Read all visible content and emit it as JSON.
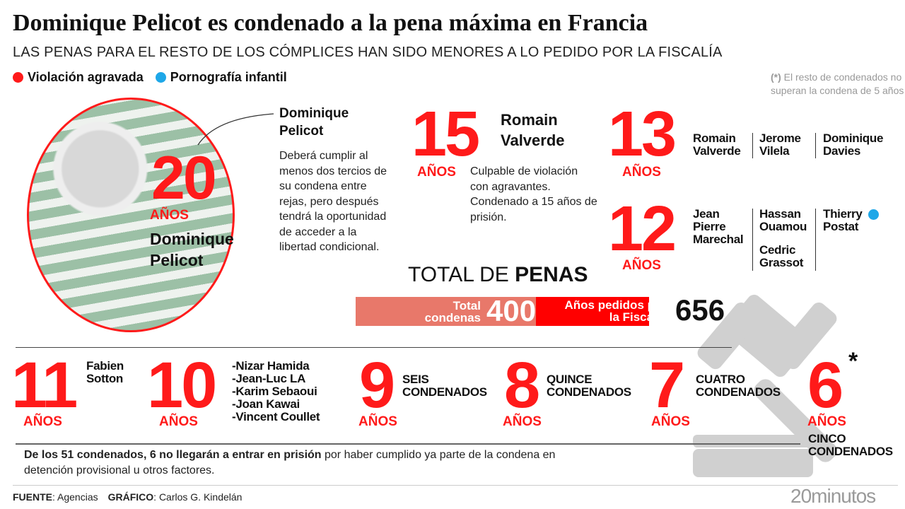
{
  "header": {
    "title": "Dominique Pelicot es condenado a la pena máxima en Francia",
    "subtitle": "LAS PENAS PARA EL RESTO DE LOS CÓMPLICES HAN SIDO MENORES A LO PEDIDO POR LA FISCALÍA"
  },
  "legend": [
    {
      "label": "Violación agravada",
      "color": "#ff1a1a"
    },
    {
      "label": "Pornografía infantil",
      "color": "#1ea7e8"
    }
  ],
  "note": {
    "marker": "(*)",
    "text": " El resto de condenados no superan la condena de 5 años"
  },
  "main": {
    "years": "20",
    "anos": "AÑOS",
    "name1": "Dominique",
    "name2": "Pelicot",
    "callout_title": "Dominique Pelicot",
    "callout_text": "Deberá cumplir al menos dos tercios de su condena entre rejas, pero después tendrá la oportunidad de acceder a la libertad condicional."
  },
  "romain": {
    "years": "15",
    "anos": "AÑOS",
    "name": "Romain Valverde",
    "text": "Culpable de violación con agravantes. Condenado a 15 años de prisión."
  },
  "thirteen": {
    "years": "13",
    "anos": "AÑOS",
    "names": [
      "Romain Valverde",
      "Jerome Vilela",
      "Dominique Davies"
    ]
  },
  "twelve": {
    "years": "12",
    "anos": "AÑOS",
    "names": [
      "Jean Pierre Marechal",
      "Hassan Ouamou",
      "Cedric Grassot",
      "Thierry Postat"
    ]
  },
  "totals": {
    "title_light": "TOTAL DE ",
    "title_bold": "PENAS",
    "condenas_label": "Total condenas",
    "condenas_value": "400",
    "fiscalia_label": "Años pedidos por la Fiscalía",
    "fiscalia_value": "656",
    "colors": {
      "condenas": "#e8786a",
      "fiscalia": "#ff0000"
    }
  },
  "bottom": [
    {
      "years": "11",
      "anos": "AÑOS",
      "names": [
        "Fabien",
        "Sotton"
      ]
    },
    {
      "years": "10",
      "anos": "AÑOS",
      "names": [
        "-Nizar Hamida",
        "-Jean-Luc LA",
        "-Karim Sebaoui",
        "-Joan Kawai",
        "-Vincent Coullet"
      ]
    },
    {
      "years": "9",
      "anos": "AÑOS",
      "names": [
        "SEIS",
        "CONDENADOS"
      ]
    },
    {
      "years": "8",
      "anos": "AÑOS",
      "names": [
        "QUINCE",
        "CONDENADOS"
      ]
    },
    {
      "years": "7",
      "anos": "AÑOS",
      "names": [
        "CUATRO",
        "CONDENADOS"
      ]
    },
    {
      "years": "6",
      "star": "*",
      "anos": "AÑOS",
      "names": [
        "CINCO",
        "CONDENADOS"
      ]
    }
  ],
  "footnote": {
    "bold": "De los 51 condenados, 6 no llegarán a entrar en prisión",
    "rest": " por haber cumplido ya parte de la condena en detención provisional u otros factores."
  },
  "footer": {
    "fuente_label": "FUENTE",
    "fuente": ": Agencias",
    "grafico_label": "GRÁFICO",
    "grafico": ": Carlos G. Kindelán",
    "logo": "20minutos"
  }
}
